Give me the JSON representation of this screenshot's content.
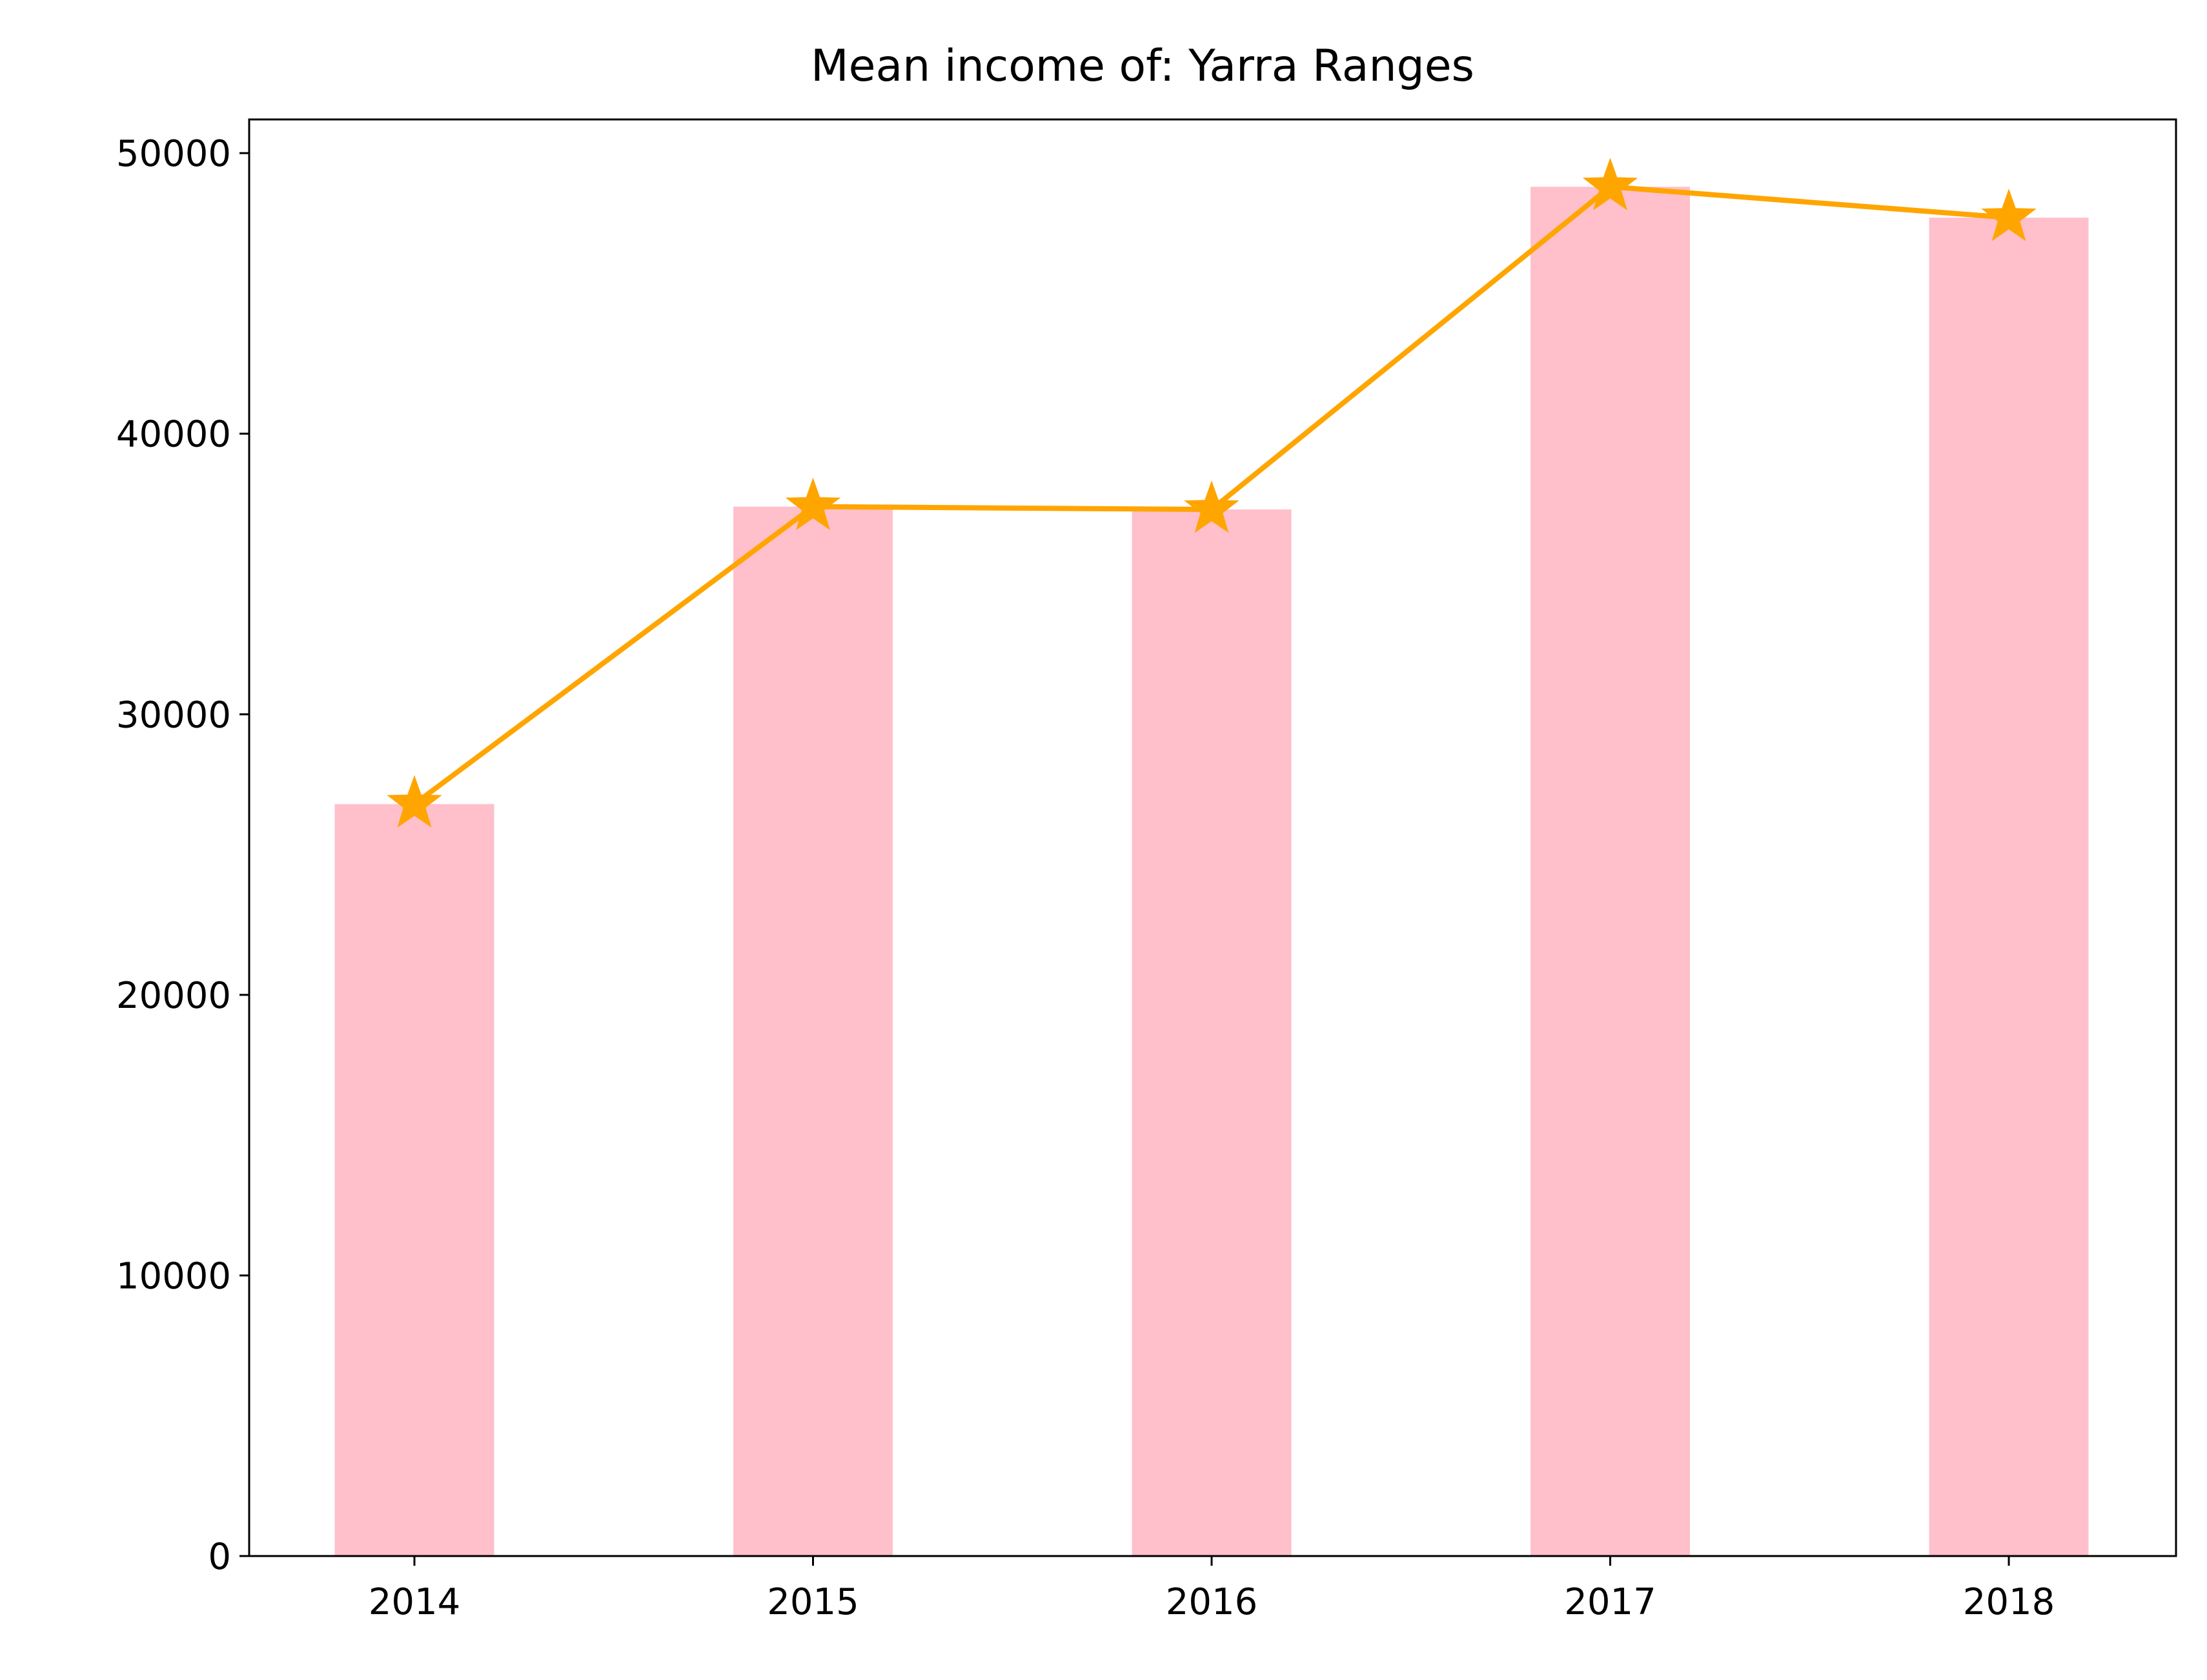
{
  "chart_data": {
    "type": "bar",
    "title": "Mean income of: Yarra Ranges",
    "xlabel": "",
    "ylabel": "",
    "categories": [
      "2014",
      "2015",
      "2016",
      "2017",
      "2018"
    ],
    "series": [
      {
        "kind": "bar",
        "values": [
          26800,
          37400,
          37300,
          48800,
          47700
        ],
        "color": "#FFC0CB"
      },
      {
        "kind": "line",
        "values": [
          26800,
          37400,
          37300,
          48800,
          47700
        ],
        "color": "#FFA500",
        "marker": "star"
      }
    ],
    "ylim": [
      0,
      51200
    ],
    "yticks": [
      0,
      10000,
      20000,
      30000,
      40000,
      50000
    ],
    "grid": false,
    "legend": "none"
  }
}
